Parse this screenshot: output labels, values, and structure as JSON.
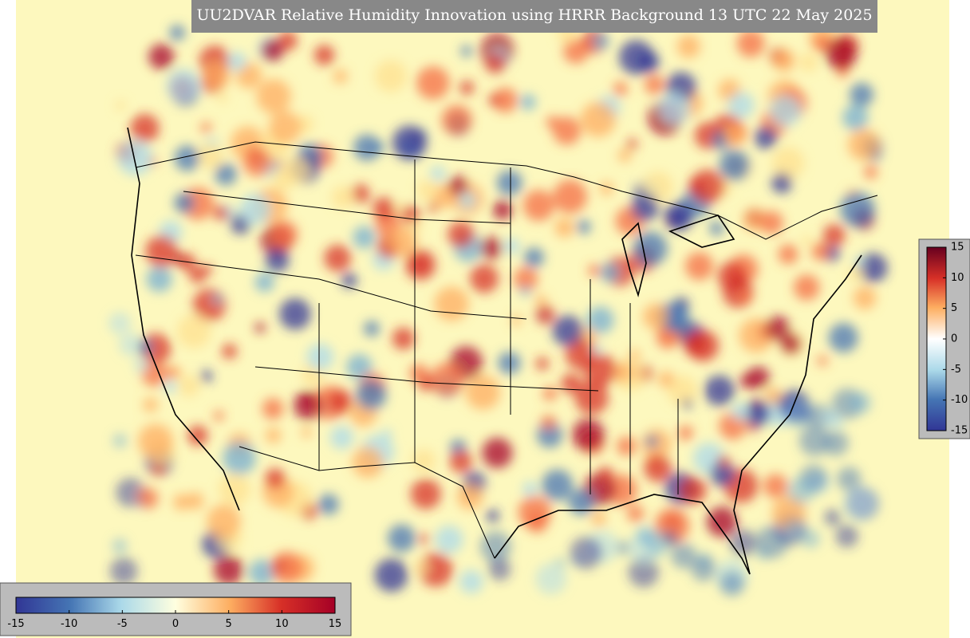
{
  "title": "UU2DVAR Relative Humidity Innovation using HRRR Background 13 UTC 22 May 2025",
  "colorbar_vertical": {
    "ticks": [
      15,
      10,
      5,
      0,
      -5,
      -10,
      -15
    ]
  },
  "colorbar_horizontal": {
    "ticks": [
      -15,
      -10,
      -5,
      0,
      5,
      10,
      15
    ]
  }
}
